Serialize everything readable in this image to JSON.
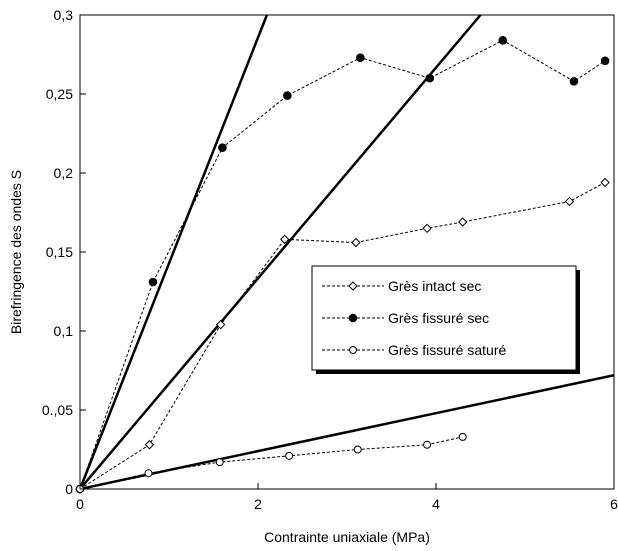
{
  "chart_data": {
    "type": "line",
    "title": "",
    "xlabel": "Contrainte uniaxiale (MPa)",
    "ylabel": "Birefringence des ondes S",
    "xlim": [
      0,
      6
    ],
    "ylim": [
      0,
      0.3
    ],
    "grid": false,
    "legend_position": "center-right",
    "x_ticks": [
      {
        "value": 0,
        "label": "0"
      },
      {
        "value": 2,
        "label": "2"
      },
      {
        "value": 4,
        "label": "4"
      },
      {
        "value": 6,
        "label": "6"
      }
    ],
    "y_ticks": [
      {
        "value": 0,
        "label": "0"
      },
      {
        "value": 0.05,
        "label": "0.,05"
      },
      {
        "value": 0.1,
        "label": "0,1"
      },
      {
        "value": 0.15,
        "label": "0,15"
      },
      {
        "value": 0.2,
        "label": "0,2"
      },
      {
        "value": 0.25,
        "label": "0,25"
      },
      {
        "value": 0.3,
        "label": "0,3"
      }
    ],
    "series": [
      {
        "name": "Grès intact sec",
        "marker": "diamond-open",
        "x": [
          0,
          0.78,
          1.58,
          2.3,
          3.1,
          3.9,
          4.3,
          5.5,
          5.9
        ],
        "y": [
          0,
          0.028,
          0.104,
          0.158,
          0.156,
          0.165,
          0.169,
          0.182,
          0.194
        ]
      },
      {
        "name": "Grès fissuré sec",
        "marker": "circle-filled",
        "x": [
          0,
          0.82,
          1.6,
          2.33,
          3.15,
          3.93,
          4.75,
          5.55,
          5.9
        ],
        "y": [
          0,
          0.131,
          0.216,
          0.249,
          0.273,
          0.26,
          0.284,
          0.258,
          0.271
        ]
      },
      {
        "name": "Grès fissuré saturé",
        "marker": "circle-open",
        "x": [
          0,
          0.77,
          1.57,
          2.35,
          3.12,
          3.9,
          4.3
        ],
        "y": [
          0,
          0.01,
          0.017,
          0.021,
          0.025,
          0.028,
          0.033
        ]
      }
    ],
    "reference_lines": [
      {
        "x": [
          0,
          2.1
        ],
        "y": [
          0,
          0.3
        ]
      },
      {
        "x": [
          0,
          4.5
        ],
        "y": [
          0,
          0.3
        ]
      },
      {
        "x": [
          0,
          6
        ],
        "y": [
          0,
          0.072
        ]
      }
    ]
  }
}
